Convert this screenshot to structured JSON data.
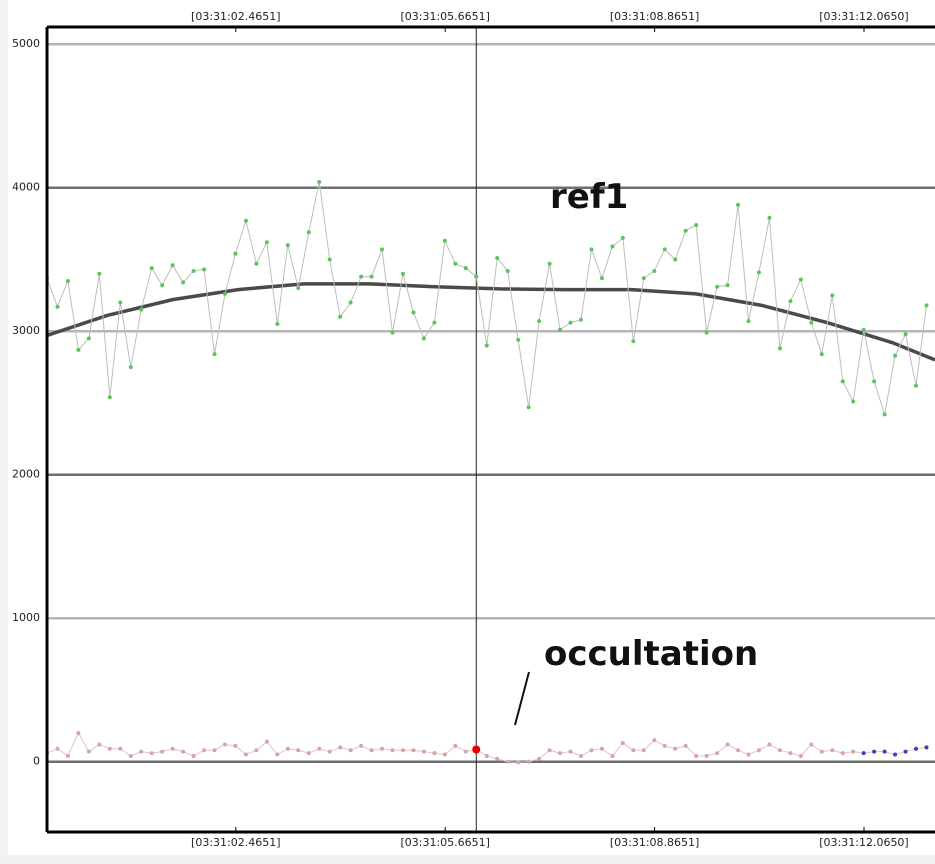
{
  "chart_data": {
    "type": "line",
    "xlim": [
      -0.42,
      13.15
    ],
    "ylim": [
      -490,
      5120
    ],
    "xticks": [
      {
        "value": 2.4651,
        "label": "[03:31:02.4651]"
      },
      {
        "value": 5.6651,
        "label": "[03:31:05.6651]"
      },
      {
        "value": 8.8651,
        "label": "[03:31:08.8651]"
      },
      {
        "value": 12.065,
        "label": "[03:31:12.0650]"
      }
    ],
    "yticks": [
      0,
      1000,
      2000,
      3000,
      4000,
      5000
    ],
    "grid": true,
    "cursor_x": 6.14,
    "x": [
      -0.42,
      -0.26,
      -0.1,
      0.06,
      0.22,
      0.38,
      0.54,
      0.7,
      0.86,
      1.02,
      1.18,
      1.34,
      1.5,
      1.66,
      1.82,
      1.98,
      2.14,
      2.3,
      2.46,
      2.62,
      2.78,
      2.94,
      3.1,
      3.26,
      3.42,
      3.58,
      3.74,
      3.9,
      4.06,
      4.22,
      4.38,
      4.54,
      4.7,
      4.86,
      5.02,
      5.18,
      5.34,
      5.5,
      5.66,
      5.82,
      5.98,
      6.14,
      6.3,
      6.46,
      6.62,
      6.78,
      6.94,
      7.1,
      7.26,
      7.42,
      7.58,
      7.74,
      7.9,
      8.06,
      8.22,
      8.38,
      8.54,
      8.7,
      8.86,
      9.02,
      9.18,
      9.34,
      9.5,
      9.66,
      9.82,
      9.98,
      10.14,
      10.3,
      10.46,
      10.62,
      10.78,
      10.94,
      11.1,
      11.26,
      11.42,
      11.58,
      11.74,
      11.9,
      12.06,
      12.22,
      12.38,
      12.54,
      12.7,
      12.86,
      13.02
    ],
    "series": [
      {
        "name": "ref1",
        "color": "#5cc45c",
        "line_color": "#bdbdbd",
        "values": [
          3370,
          3170,
          3350,
          2870,
          2950,
          3400,
          2540,
          3200,
          2750,
          3150,
          3440,
          3320,
          3460,
          3340,
          3420,
          3430,
          2840,
          3260,
          3540,
          3770,
          3470,
          3620,
          3050,
          3600,
          3300,
          3690,
          4040,
          3500,
          3100,
          3200,
          3380,
          3380,
          3570,
          2990,
          3400,
          3130,
          2950,
          3060,
          3630,
          3470,
          3440,
          3380,
          2900,
          3510,
          3420,
          2940,
          2470,
          3070,
          3470,
          3010,
          3060,
          3080,
          3570,
          3370,
          3590,
          3650,
          2930,
          3370,
          3420,
          3570,
          3500,
          3700,
          3740,
          2990,
          3310,
          3320,
          3880,
          3070,
          3410,
          3790,
          2880,
          3210,
          3360,
          3060,
          2840,
          3250,
          2650,
          2510,
          3010,
          2650,
          2420,
          2830,
          2980,
          2620,
          3180
        ]
      },
      {
        "name": "occultation",
        "color": "#d9a3a3",
        "line_color": "#e2c4c4",
        "highlight": {
          "index": 41,
          "color": "#e00000"
        },
        "tail": {
          "from": 78,
          "color": "#3344bb"
        },
        "values": [
          60,
          90,
          40,
          200,
          70,
          120,
          90,
          90,
          40,
          70,
          60,
          70,
          90,
          70,
          40,
          80,
          80,
          120,
          110,
          50,
          80,
          140,
          50,
          90,
          80,
          60,
          90,
          70,
          100,
          80,
          110,
          80,
          90,
          80,
          80,
          80,
          70,
          60,
          50,
          110,
          70,
          85,
          40,
          20,
          0,
          -5,
          0,
          20,
          80,
          60,
          70,
          40,
          80,
          90,
          40,
          130,
          80,
          80,
          150,
          110,
          90,
          110,
          40,
          40,
          60,
          120,
          80,
          50,
          80,
          120,
          80,
          60,
          40,
          120,
          70,
          80,
          60,
          70,
          60,
          70,
          70,
          50,
          70,
          90,
          100
        ]
      }
    ],
    "trend": {
      "color": "#4a4a4a",
      "x": [
        -0.42,
        0.5,
        1.5,
        2.5,
        3.5,
        4.5,
        5.5,
        6.5,
        7.5,
        8.5,
        9.5,
        10.5,
        11.5,
        12.5,
        13.15
      ],
      "values": [
        2970,
        3110,
        3220,
        3290,
        3330,
        3330,
        3310,
        3295,
        3290,
        3290,
        3260,
        3180,
        3060,
        2920,
        2800
      ]
    }
  }
}
